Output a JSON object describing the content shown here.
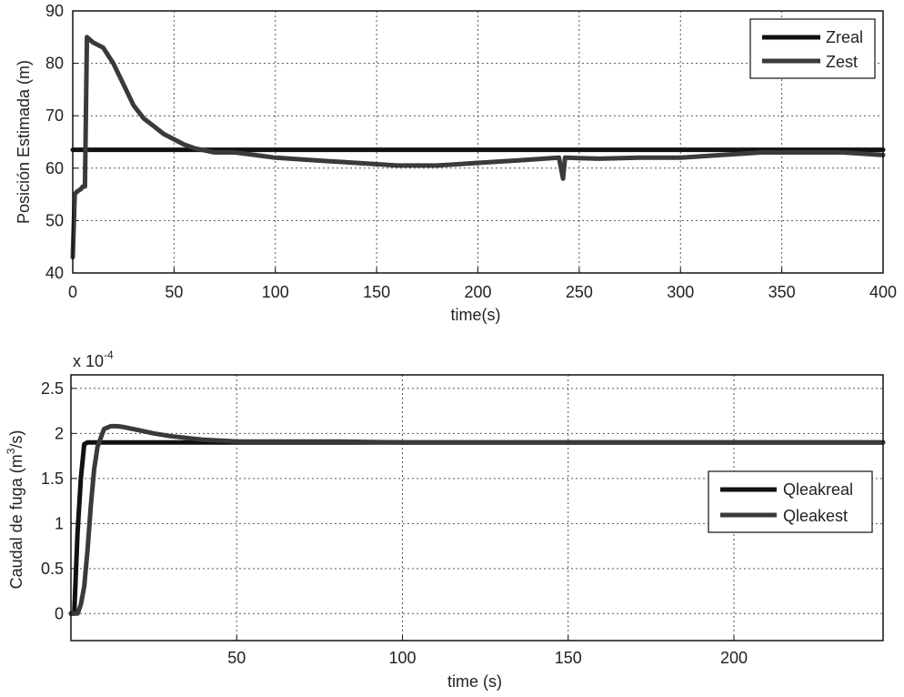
{
  "chart_data": [
    {
      "type": "line",
      "xlabel": "time(s)",
      "ylabel": "Posición Estimada (m)",
      "xlim": [
        0,
        400
      ],
      "ylim": [
        40,
        90
      ],
      "xticks": [
        0,
        50,
        100,
        150,
        200,
        250,
        300,
        350,
        400
      ],
      "yticks": [
        40,
        50,
        60,
        70,
        80,
        90
      ],
      "grid": true,
      "legend": "top-right",
      "series": [
        {
          "name": "Zreal",
          "color": "#111111",
          "x": [
            0,
            400
          ],
          "y": [
            63.5,
            63.5
          ]
        },
        {
          "name": "Zest",
          "color": "#3a3a3a",
          "x": [
            0,
            1,
            2,
            4,
            5,
            6,
            7,
            10,
            15,
            20,
            25,
            30,
            35,
            40,
            45,
            50,
            55,
            60,
            70,
            80,
            90,
            100,
            120,
            140,
            160,
            180,
            200,
            220,
            240,
            242,
            243,
            260,
            280,
            300,
            320,
            340,
            360,
            380,
            400
          ],
          "y": [
            43,
            55,
            55.5,
            56,
            56.5,
            56.5,
            85,
            84,
            83,
            80,
            76,
            72,
            69.5,
            68,
            66.5,
            65.5,
            64.5,
            63.8,
            63,
            63,
            62.5,
            62,
            61.5,
            61,
            60.5,
            60.5,
            61,
            61.5,
            62,
            58,
            62,
            61.8,
            62,
            62,
            62.5,
            63,
            63,
            63,
            62.5
          ]
        }
      ]
    },
    {
      "type": "line",
      "xlabel": "time (s)",
      "ylabel": "Caudal de fuga (m³/s)",
      "ylabel_main": "Caudal de fuga (m",
      "ylabel_sup": "3",
      "ylabel_tail": "/s)",
      "scale_base": "x 10",
      "scale_exp": "-4",
      "xlim": [
        0,
        245
      ],
      "ylim": [
        -0.3,
        2.65
      ],
      "xticks": [
        50,
        100,
        150,
        200
      ],
      "yticks": [
        0,
        0.5,
        1,
        1.5,
        2,
        2.5
      ],
      "grid": true,
      "legend": "right",
      "series": [
        {
          "name": "Qleakreal",
          "color": "#111111",
          "x": [
            0,
            1,
            2,
            3,
            4,
            5,
            245
          ],
          "y": [
            0,
            0,
            0.9,
            1.5,
            1.88,
            1.9,
            1.9
          ]
        },
        {
          "name": "Qleakest",
          "color": "#3a3a3a",
          "x": [
            0,
            2,
            3,
            4,
            5,
            6,
            7,
            8,
            9,
            10,
            12,
            14,
            16,
            20,
            25,
            30,
            35,
            40,
            50,
            60,
            80,
            100,
            150,
            200,
            245
          ],
          "y": [
            0,
            0,
            0.1,
            0.3,
            0.7,
            1.2,
            1.6,
            1.85,
            1.95,
            2.05,
            2.08,
            2.08,
            2.07,
            2.04,
            2.0,
            1.97,
            1.95,
            1.93,
            1.91,
            1.91,
            1.91,
            1.9,
            1.9,
            1.9,
            1.9
          ]
        }
      ]
    }
  ]
}
